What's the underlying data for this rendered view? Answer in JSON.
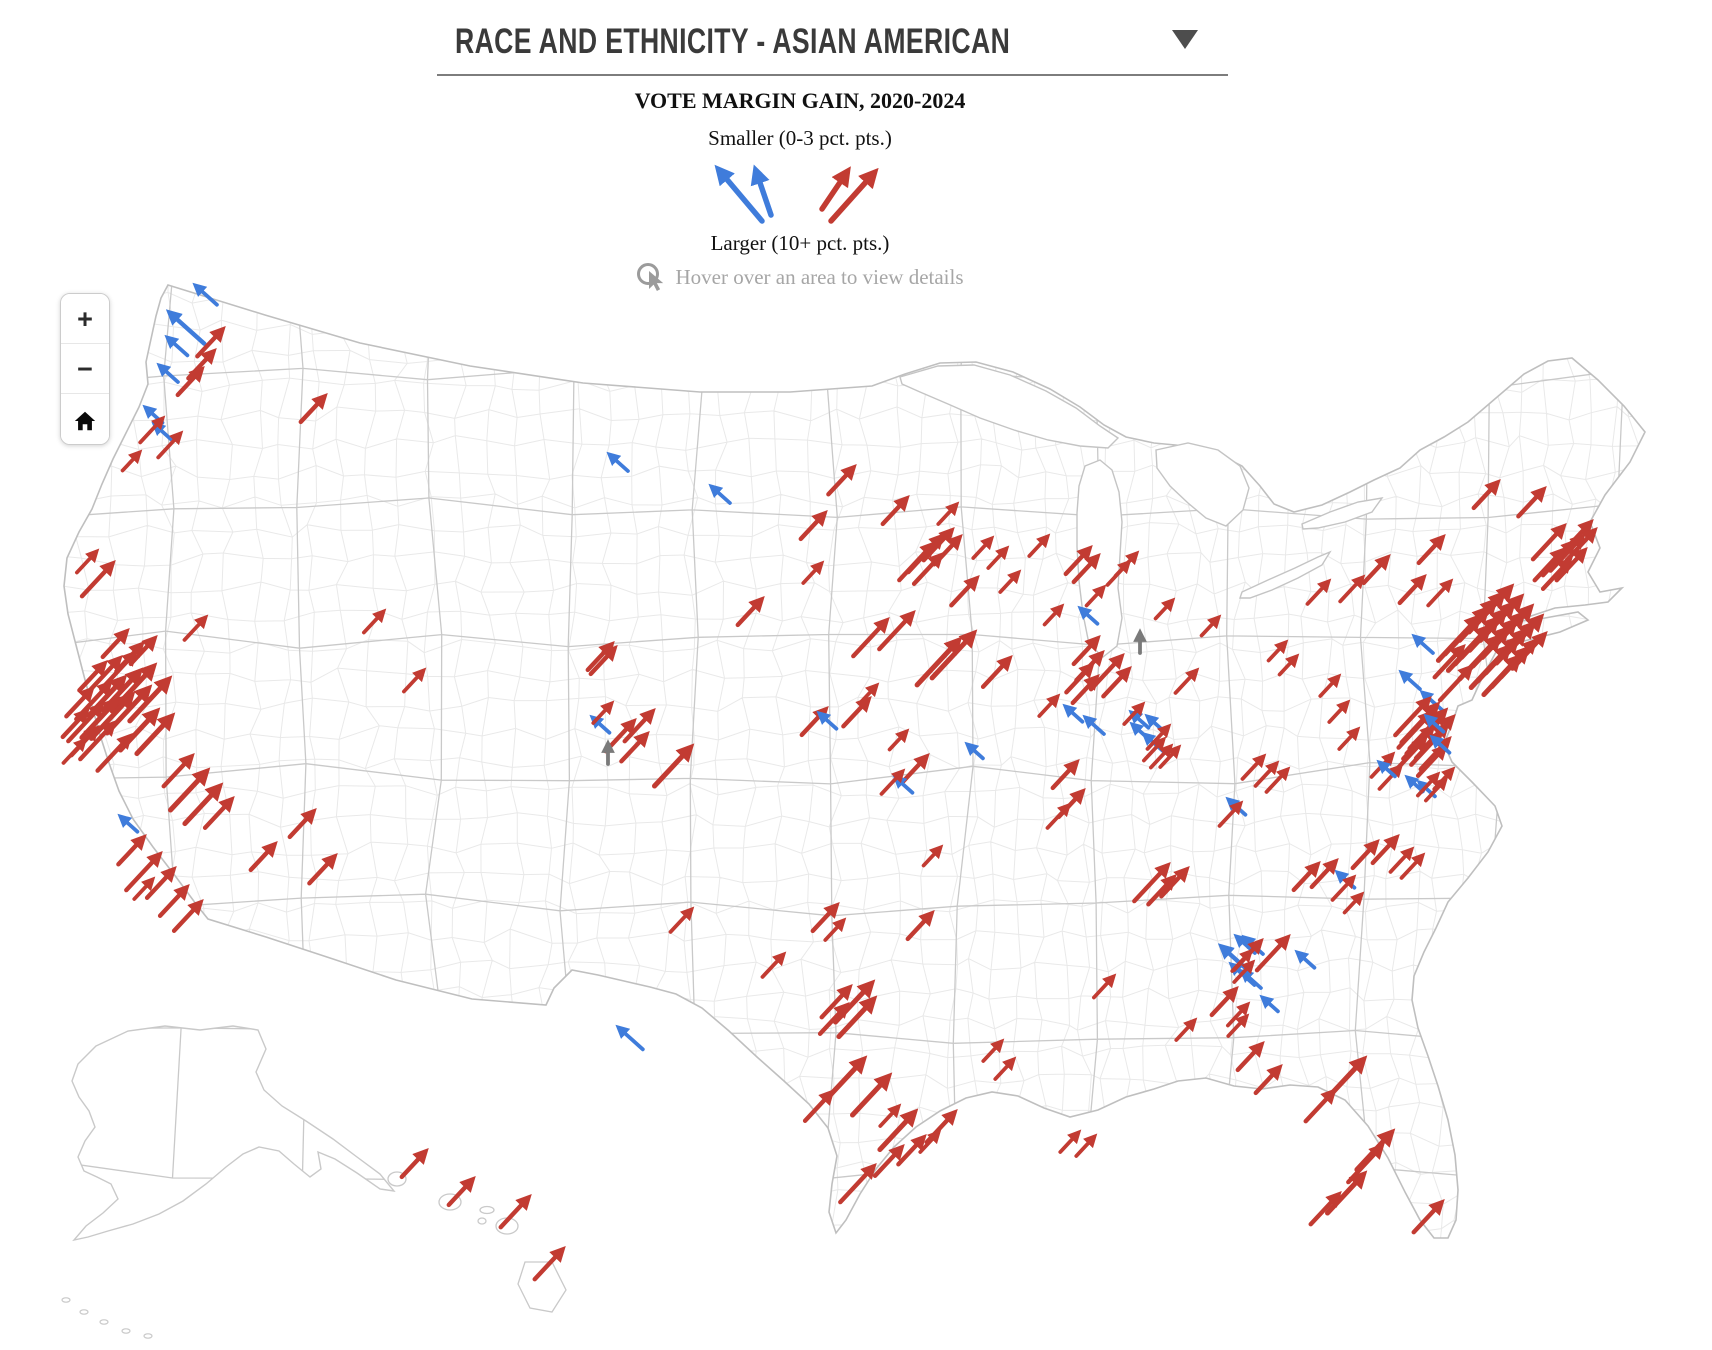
{
  "header": {
    "title": "RACE AND ETHNICITY - ASIAN AMERICAN"
  },
  "legend": {
    "title": "VOTE MARGIN GAIN, 2020-2024",
    "smaller_label": "Smaller (0-3 pct. pts.)",
    "larger_label": "Larger (10+ pct. pts.)",
    "hover_hint": "Hover over an area to view details"
  },
  "controls": {
    "zoom_in": "+",
    "zoom_out": "−"
  },
  "colors": {
    "rep_red": "#c23b32",
    "dem_blue": "#3f7cdb",
    "neutral_gray": "#7a7a7a",
    "county_line": "#e9e9e9",
    "state_line": "#c9c9c9",
    "outline": "#bfbfbf",
    "hover_gray": "#9b9b9b"
  },
  "chart_data": {
    "type": "map-arrows",
    "title": "VOTE MARGIN GAIN, 2020-2024",
    "subject": "Race and Ethnicity - Asian American",
    "direction_encoding": {
      "red_up_right": "margin shift toward Republicans",
      "blue_up_left": "margin shift toward Democrats",
      "gray_up": "negligible shift"
    },
    "size_encoding": {
      "small": "0-3 pct. pts.",
      "large": "10+ pct. pts."
    },
    "arrows": [
      [
        "b",
        196,
        286,
        28
      ],
      [
        "b",
        170,
        313,
        46
      ],
      [
        "b",
        168,
        338,
        26
      ],
      [
        "b",
        160,
        366,
        24
      ],
      [
        "b",
        146,
        408,
        22
      ],
      [
        "b",
        155,
        425,
        24
      ],
      [
        "r",
        222,
        330,
        36
      ],
      [
        "r",
        213,
        352,
        36
      ],
      [
        "r",
        201,
        370,
        34
      ],
      [
        "r",
        324,
        397,
        34
      ],
      [
        "r",
        162,
        419,
        32
      ],
      [
        "r",
        180,
        434,
        32
      ],
      [
        "r",
        139,
        453,
        24
      ],
      [
        "r",
        96,
        552,
        28
      ],
      [
        "r",
        112,
        564,
        44
      ],
      [
        "r",
        126,
        632,
        34
      ],
      [
        "r",
        141,
        645,
        36
      ],
      [
        "r",
        154,
        639,
        34
      ],
      [
        "r",
        205,
        618,
        30
      ],
      [
        "r",
        104,
        664,
        36
      ],
      [
        "r",
        119,
        659,
        48
      ],
      [
        "r",
        134,
        654,
        48
      ],
      [
        "r",
        91,
        690,
        36
      ],
      [
        "r",
        109,
        684,
        48
      ],
      [
        "r",
        123,
        679,
        50
      ],
      [
        "r",
        139,
        672,
        52
      ],
      [
        "r",
        153,
        667,
        60
      ],
      [
        "r",
        86,
        712,
        34
      ],
      [
        "r",
        101,
        706,
        48
      ],
      [
        "r",
        116,
        701,
        50
      ],
      [
        "r",
        131,
        696,
        58
      ],
      [
        "r",
        148,
        689,
        60
      ],
      [
        "r",
        96,
        729,
        36
      ],
      [
        "r",
        113,
        724,
        48
      ],
      [
        "r",
        84,
        741,
        30
      ],
      [
        "r",
        129,
        737,
        46
      ],
      [
        "r",
        168,
        680,
        56
      ],
      [
        "r",
        156,
        712,
        52
      ],
      [
        "r",
        171,
        717,
        50
      ],
      [
        "r",
        191,
        757,
        40
      ],
      [
        "r",
        206,
        772,
        52
      ],
      [
        "r",
        219,
        787,
        50
      ],
      [
        "r",
        231,
        800,
        38
      ],
      [
        "b",
        121,
        817,
        22
      ],
      [
        "r",
        143,
        838,
        36
      ],
      [
        "r",
        159,
        855,
        48
      ],
      [
        "r",
        173,
        870,
        38
      ],
      [
        "r",
        186,
        888,
        38
      ],
      [
        "r",
        200,
        903,
        38
      ],
      [
        "r",
        152,
        880,
        26
      ],
      [
        "r",
        274,
        845,
        34
      ],
      [
        "r",
        313,
        812,
        34
      ],
      [
        "r",
        334,
        857,
        36
      ],
      [
        "r",
        383,
        612,
        28
      ],
      [
        "r",
        423,
        671,
        28
      ],
      [
        "b",
        610,
        455,
        24
      ],
      [
        "b",
        712,
        487,
        24
      ],
      [
        "r",
        853,
        468,
        36
      ],
      [
        "r",
        824,
        514,
        34
      ],
      [
        "r",
        821,
        564,
        26
      ],
      [
        "r",
        761,
        600,
        34
      ],
      [
        "r",
        611,
        645,
        34
      ],
      [
        "r",
        614,
        649,
        34
      ],
      [
        "b",
        593,
        718,
        22
      ],
      [
        "r",
        611,
        704,
        26
      ],
      [
        "r",
        633,
        722,
        40
      ],
      [
        "r",
        652,
        712,
        40
      ],
      [
        "r",
        646,
        735,
        36
      ],
      [
        "g",
        608,
        744,
        20
      ],
      [
        "r",
        690,
        748,
        52
      ],
      [
        "r",
        906,
        499,
        34
      ],
      [
        "r",
        956,
        505,
        26
      ],
      [
        "r",
        932,
        545,
        48
      ],
      [
        "r",
        941,
        537,
        48
      ],
      [
        "r",
        951,
        531,
        40
      ],
      [
        "r",
        959,
        538,
        36
      ],
      [
        "r",
        940,
        556,
        38
      ],
      [
        "r",
        991,
        539,
        26
      ],
      [
        "r",
        1006,
        549,
        26
      ],
      [
        "r",
        1047,
        537,
        26
      ],
      [
        "r",
        1089,
        549,
        34
      ],
      [
        "r",
        1097,
        557,
        34
      ],
      [
        "r",
        976,
        579,
        36
      ],
      [
        "r",
        1018,
        573,
        26
      ],
      [
        "b",
        1081,
        609,
        22
      ],
      [
        "r",
        1061,
        607,
        24
      ],
      [
        "r",
        1103,
        588,
        24
      ],
      [
        "r",
        1128,
        563,
        30
      ],
      [
        "r",
        1136,
        554,
        30
      ],
      [
        "r",
        1172,
        601,
        24
      ],
      [
        "r",
        1196,
        671,
        30
      ],
      [
        "r",
        1097,
        639,
        34
      ],
      [
        "r",
        1101,
        654,
        36
      ],
      [
        "r",
        1091,
        666,
        36
      ],
      [
        "r",
        1096,
        678,
        34
      ],
      [
        "r",
        1121,
        657,
        44
      ],
      [
        "r",
        1128,
        670,
        36
      ],
      [
        "r",
        886,
        621,
        48
      ],
      [
        "r",
        912,
        614,
        48
      ],
      [
        "r",
        958,
        641,
        60
      ],
      [
        "r",
        973,
        634,
        60
      ],
      [
        "r",
        1009,
        659,
        38
      ],
      [
        "r",
        876,
        686,
        24
      ],
      [
        "r",
        868,
        700,
        36
      ],
      [
        "r",
        825,
        710,
        34
      ],
      [
        "b",
        820,
        714,
        22
      ],
      [
        "r",
        906,
        732,
        24
      ],
      [
        "b",
        968,
        745,
        20
      ],
      [
        "r",
        926,
        757,
        34
      ],
      [
        "b",
        896,
        778,
        22
      ],
      [
        "r",
        902,
        772,
        30
      ],
      [
        "r",
        1057,
        697,
        26
      ],
      [
        "b",
        1066,
        707,
        22
      ],
      [
        "b",
        1086,
        718,
        24
      ],
      [
        "b",
        1132,
        713,
        22
      ],
      [
        "b",
        1148,
        717,
        22
      ],
      [
        "b",
        1133,
        725,
        22
      ],
      [
        "b",
        1145,
        735,
        24
      ],
      [
        "r",
        1142,
        705,
        26
      ],
      [
        "r",
        1168,
        727,
        30
      ],
      [
        "r",
        1163,
        740,
        28
      ],
      [
        "r",
        1170,
        747,
        28
      ],
      [
        "r",
        1178,
        748,
        26
      ],
      [
        "g",
        1140,
        633,
        20
      ],
      [
        "r",
        1218,
        618,
        24
      ],
      [
        "r",
        1076,
        763,
        34
      ],
      [
        "r",
        1082,
        792,
        34
      ],
      [
        "r",
        1068,
        806,
        30
      ],
      [
        "r",
        940,
        848,
        24
      ],
      [
        "r",
        1167,
        866,
        48
      ],
      [
        "r",
        1173,
        878,
        36
      ],
      [
        "r",
        1186,
        870,
        36
      ],
      [
        "r",
        1263,
        757,
        30
      ],
      [
        "r",
        1276,
        764,
        30
      ],
      [
        "r",
        1287,
        770,
        30
      ],
      [
        "b",
        1229,
        800,
        22
      ],
      [
        "r",
        1240,
        804,
        30
      ],
      [
        "r",
        1317,
        865,
        34
      ],
      [
        "r",
        1335,
        862,
        34
      ],
      [
        "r",
        1376,
        843,
        34
      ],
      [
        "r",
        1396,
        838,
        34
      ],
      [
        "r",
        1411,
        850,
        30
      ],
      [
        "r",
        1422,
        856,
        30
      ],
      [
        "b",
        1338,
        873,
        22
      ],
      [
        "r",
        1353,
        878,
        30
      ],
      [
        "r",
        1361,
        895,
        24
      ],
      [
        "b",
        1222,
        947,
        34
      ],
      [
        "b",
        1237,
        937,
        24
      ],
      [
        "b",
        1245,
        938,
        24
      ],
      [
        "b",
        1232,
        965,
        30
      ],
      [
        "b",
        1243,
        972,
        24
      ],
      [
        "b",
        1263,
        998,
        20
      ],
      [
        "b",
        1298,
        953,
        22
      ],
      [
        "r",
        1260,
        942,
        38
      ],
      [
        "r",
        1250,
        952,
        26
      ],
      [
        "r",
        1252,
        963,
        26
      ],
      [
        "r",
        1287,
        938,
        44
      ],
      [
        "r",
        1235,
        990,
        34
      ],
      [
        "r",
        1247,
        1005,
        28
      ],
      [
        "r",
        1246,
        1017,
        26
      ],
      [
        "r",
        1261,
        1045,
        34
      ],
      [
        "r",
        1279,
        1068,
        34
      ],
      [
        "r",
        1113,
        977,
        28
      ],
      [
        "r",
        1194,
        1021,
        26
      ],
      [
        "r",
        1001,
        1042,
        26
      ],
      [
        "r",
        1013,
        1060,
        26
      ],
      [
        "r",
        1078,
        1133,
        26
      ],
      [
        "r",
        1094,
        1137,
        26
      ],
      [
        "r",
        1363,
        1060,
        52
      ],
      [
        "r",
        1333,
        1092,
        40
      ],
      [
        "r",
        1391,
        1133,
        50
      ],
      [
        "r",
        1381,
        1147,
        48
      ],
      [
        "r",
        1363,
        1175,
        52
      ],
      [
        "r",
        1338,
        1195,
        40
      ],
      [
        "r",
        1441,
        1203,
        40
      ],
      [
        "r",
        691,
        910,
        30
      ],
      [
        "r",
        836,
        906,
        34
      ],
      [
        "r",
        843,
        921,
        26
      ],
      [
        "r",
        931,
        914,
        34
      ],
      [
        "r",
        783,
        955,
        30
      ],
      [
        "r",
        849,
        988,
        40
      ],
      [
        "r",
        871,
        984,
        52
      ],
      [
        "r",
        873,
        1000,
        50
      ],
      [
        "r",
        846,
        1006,
        38
      ],
      [
        "b",
        619,
        1028,
        32
      ],
      [
        "r",
        863,
        1060,
        52
      ],
      [
        "r",
        888,
        1077,
        52
      ],
      [
        "r",
        831,
        1093,
        38
      ],
      [
        "r",
        898,
        1107,
        26
      ],
      [
        "r",
        914,
        1113,
        50
      ],
      [
        "r",
        954,
        1113,
        40
      ],
      [
        "r",
        923,
        1138,
        36
      ],
      [
        "r",
        938,
        1133,
        26
      ],
      [
        "r",
        901,
        1148,
        38
      ],
      [
        "r",
        873,
        1167,
        48
      ],
      [
        "r",
        1328,
        582,
        30
      ],
      [
        "r",
        1362,
        578,
        32
      ],
      [
        "r",
        1387,
        558,
        34
      ],
      [
        "r",
        1423,
        578,
        34
      ],
      [
        "r",
        1442,
        538,
        34
      ],
      [
        "r",
        1450,
        582,
        32
      ],
      [
        "r",
        1497,
        483,
        34
      ],
      [
        "r",
        1543,
        490,
        36
      ],
      [
        "r",
        1563,
        527,
        44
      ],
      [
        "r",
        1573,
        543,
        44
      ],
      [
        "r",
        1582,
        537,
        46
      ],
      [
        "r",
        1590,
        523,
        42
      ],
      [
        "r",
        1594,
        531,
        40
      ],
      [
        "r",
        1584,
        551,
        40
      ],
      [
        "r",
        1562,
        551,
        40
      ],
      [
        "r",
        1569,
        561,
        38
      ],
      [
        "r",
        1478,
        618,
        58
      ],
      [
        "r",
        1486,
        610,
        60
      ],
      [
        "r",
        1494,
        602,
        62
      ],
      [
        "r",
        1502,
        595,
        62
      ],
      [
        "r",
        1510,
        588,
        60
      ],
      [
        "r",
        1488,
        628,
        58
      ],
      [
        "r",
        1496,
        620,
        60
      ],
      [
        "r",
        1504,
        612,
        62
      ],
      [
        "r",
        1512,
        605,
        62
      ],
      [
        "r",
        1520,
        598,
        58
      ],
      [
        "r",
        1498,
        638,
        56
      ],
      [
        "r",
        1506,
        630,
        58
      ],
      [
        "r",
        1514,
        622,
        60
      ],
      [
        "r",
        1522,
        615,
        58
      ],
      [
        "r",
        1530,
        608,
        54
      ],
      [
        "r",
        1508,
        648,
        54
      ],
      [
        "r",
        1516,
        640,
        56
      ],
      [
        "r",
        1524,
        632,
        56
      ],
      [
        "r",
        1532,
        625,
        52
      ],
      [
        "r",
        1540,
        618,
        50
      ],
      [
        "r",
        1518,
        658,
        50
      ],
      [
        "r",
        1526,
        650,
        50
      ],
      [
        "r",
        1534,
        642,
        48
      ],
      [
        "r",
        1544,
        635,
        46
      ],
      [
        "r",
        1462,
        648,
        40
      ],
      [
        "r",
        1470,
        668,
        44
      ],
      [
        "b",
        1415,
        637,
        24
      ],
      [
        "b",
        1402,
        673,
        24
      ],
      [
        "b",
        1423,
        693,
        26
      ],
      [
        "r",
        1285,
        643,
        24
      ],
      [
        "r",
        1296,
        657,
        24
      ],
      [
        "r",
        1338,
        677,
        26
      ],
      [
        "r",
        1347,
        703,
        26
      ],
      [
        "r",
        1357,
        730,
        26
      ],
      [
        "r",
        1428,
        700,
        48
      ],
      [
        "r",
        1436,
        706,
        50
      ],
      [
        "r",
        1444,
        712,
        50
      ],
      [
        "r",
        1430,
        714,
        46
      ],
      [
        "r",
        1438,
        720,
        46
      ],
      [
        "r",
        1446,
        726,
        44
      ],
      [
        "r",
        1432,
        728,
        42
      ],
      [
        "r",
        1440,
        734,
        42
      ],
      [
        "r",
        1448,
        740,
        40
      ],
      [
        "r",
        1452,
        718,
        42
      ],
      [
        "r",
        1424,
        740,
        38
      ],
      [
        "r",
        1444,
        748,
        38
      ],
      [
        "b",
        1427,
        717,
        22
      ],
      [
        "b",
        1433,
        738,
        22
      ],
      [
        "r",
        1392,
        755,
        30
      ],
      [
        "r",
        1400,
        767,
        30
      ],
      [
        "b",
        1380,
        763,
        20
      ],
      [
        "b",
        1408,
        778,
        20
      ],
      [
        "b",
        1420,
        783,
        20
      ],
      [
        "r",
        1437,
        775,
        28
      ],
      [
        "r",
        1445,
        780,
        28
      ],
      [
        "r",
        1452,
        770,
        26
      ],
      [
        "r",
        425,
        1152,
        34
      ],
      [
        "r",
        472,
        1180,
        34
      ],
      [
        "r",
        528,
        1198,
        40
      ],
      [
        "r",
        562,
        1250,
        40
      ]
    ]
  }
}
